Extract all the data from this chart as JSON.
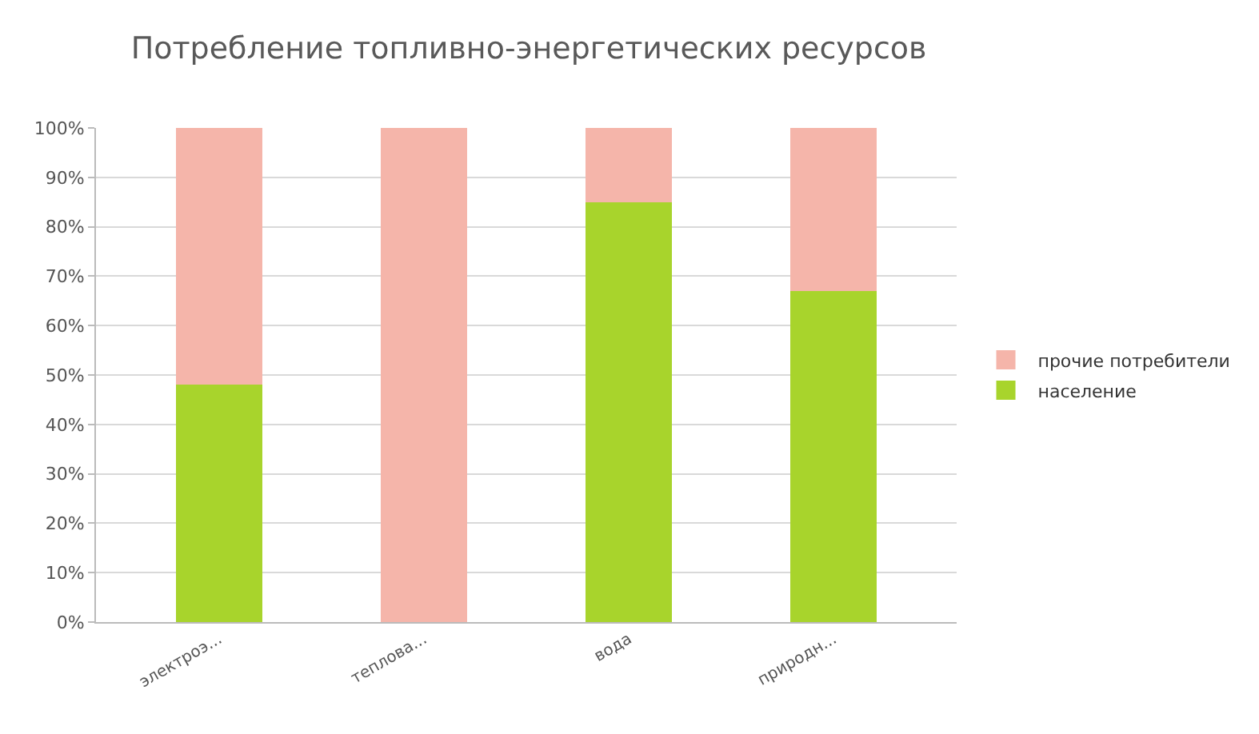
{
  "chart_data": {
    "type": "bar",
    "title": "Потребление топливно-энергетических ресурсов",
    "categories": [
      "электроэ...",
      "теплова...",
      "вода",
      "природн..."
    ],
    "stacked": true,
    "series": [
      {
        "name": "население",
        "color": "#a8d42c",
        "values": [
          48,
          0,
          85,
          67
        ]
      },
      {
        "name": "прочие потребители",
        "color": "#f5b5aa",
        "values": [
          52,
          100,
          15,
          33
        ]
      }
    ],
    "ylim": [
      0,
      100
    ],
    "yticks": [
      {
        "value": 0,
        "label": "0%"
      },
      {
        "value": 10,
        "label": "10%"
      },
      {
        "value": 20,
        "label": "20%"
      },
      {
        "value": 30,
        "label": "30%"
      },
      {
        "value": 40,
        "label": "40%"
      },
      {
        "value": 50,
        "label": "50%"
      },
      {
        "value": 60,
        "label": "60%"
      },
      {
        "value": 70,
        "label": "70%"
      },
      {
        "value": 80,
        "label": "80%"
      },
      {
        "value": 90,
        "label": "90%"
      },
      {
        "value": 100,
        "label": "100%"
      }
    ],
    "grid": "y",
    "legend": "right"
  }
}
